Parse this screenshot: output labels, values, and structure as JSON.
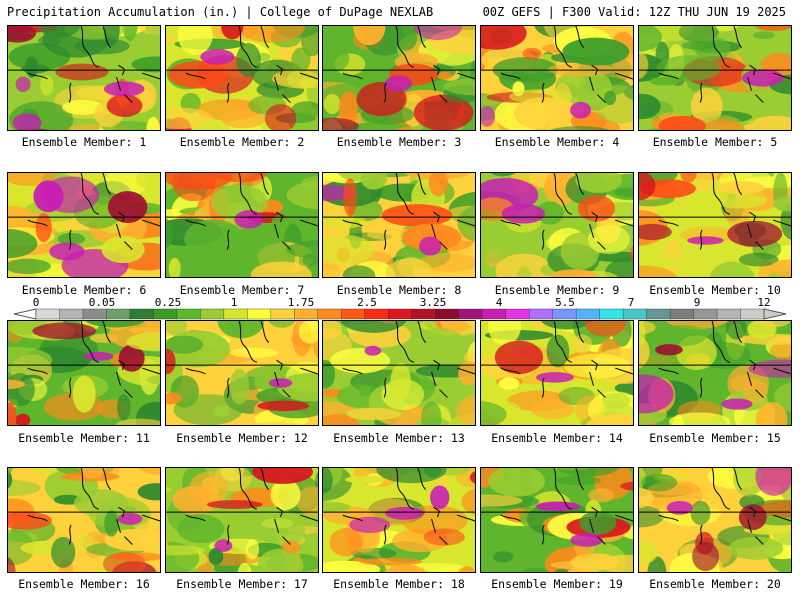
{
  "header": {
    "title_left": "Precipitation Accumulation (in.) | College of DuPage NEXLAB",
    "title_right": "00Z GEFS | F300 Valid: 12Z THU JUN 19 2025"
  },
  "panels": [
    {
      "label": "Ensemble Member: 1"
    },
    {
      "label": "Ensemble Member: 2"
    },
    {
      "label": "Ensemble Member: 3"
    },
    {
      "label": "Ensemble Member: 4"
    },
    {
      "label": "Ensemble Member: 5"
    },
    {
      "label": "Ensemble Member: 6"
    },
    {
      "label": "Ensemble Member: 7"
    },
    {
      "label": "Ensemble Member: 8"
    },
    {
      "label": "Ensemble Member: 9"
    },
    {
      "label": "Ensemble Member: 10"
    },
    {
      "label": "Ensemble Member: 11"
    },
    {
      "label": "Ensemble Member: 12"
    },
    {
      "label": "Ensemble Member: 13"
    },
    {
      "label": "Ensemble Member: 14"
    },
    {
      "label": "Ensemble Member: 15"
    },
    {
      "label": "Ensemble Member: 16"
    },
    {
      "label": "Ensemble Member: 17"
    },
    {
      "label": "Ensemble Member: 18"
    },
    {
      "label": "Ensemble Member: 19"
    },
    {
      "label": "Ensemble Member: 20"
    }
  ],
  "scale": {
    "labels": [
      "0",
      "0.05",
      "0.25",
      "1",
      "1.75",
      "2.5",
      "3.25",
      "4",
      "5.5",
      "7",
      "9",
      "12"
    ],
    "colors": [
      "#d8d8d8",
      "#b4b4b4",
      "#8c8c8c",
      "#6e9e6e",
      "#2e7d32",
      "#3a9b28",
      "#5cb82c",
      "#9acd32",
      "#d7e62a",
      "#ffff33",
      "#ffd23c",
      "#ffb02e",
      "#ff8c1a",
      "#ff5a14",
      "#ff2a14",
      "#e0141e",
      "#b4102a",
      "#8c0c30",
      "#a0147a",
      "#c81eb4",
      "#e632e6",
      "#b46eff",
      "#7896ff",
      "#50b4ff",
      "#32e6f0",
      "#46c8c8",
      "#649696",
      "#7d7d7d",
      "#969696",
      "#b4b4b4",
      "#cccccc"
    ]
  }
}
